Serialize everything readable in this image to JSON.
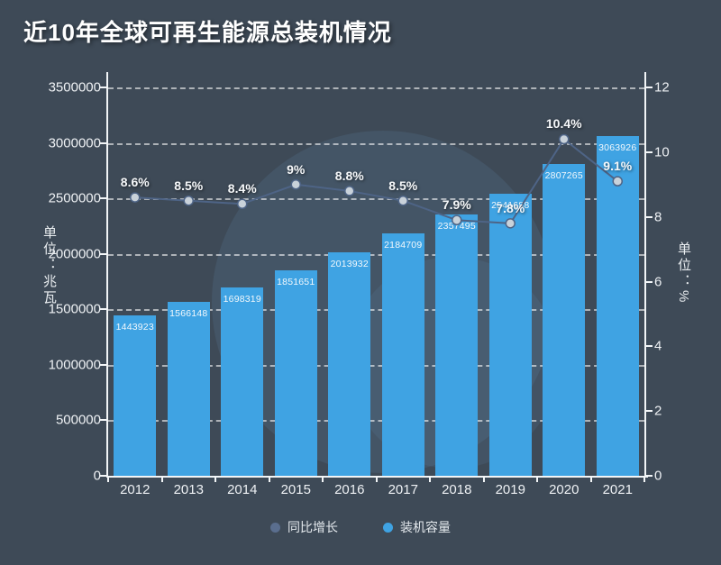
{
  "colors": {
    "background": "#3e4a57",
    "bar": "#3fa3e3",
    "line": "#4e6486",
    "marker": "#c9d2da",
    "axis": "#f2f5f7",
    "text": "#eef1f4"
  },
  "chart_data": {
    "type": "bar+line",
    "title": "近10年全球可再生能源总装机情况",
    "categories": [
      "2012",
      "2013",
      "2014",
      "2015",
      "2016",
      "2017",
      "2018",
      "2019",
      "2020",
      "2021"
    ],
    "series": [
      {
        "name": "同比增长",
        "type": "line",
        "axis": "right",
        "color": "#4e6486",
        "values": [
          8.6,
          8.5,
          8.4,
          9,
          8.8,
          8.5,
          7.9,
          7.8,
          10.4,
          9.1
        ],
        "labels": [
          "8.6%",
          "8.5%",
          "8.4%",
          "9%",
          "8.8%",
          "8.5%",
          "7.9%",
          "7.8%",
          "10.4%",
          "9.1%"
        ]
      },
      {
        "name": "装机容量",
        "type": "bar",
        "axis": "left",
        "color": "#3fa3e3",
        "values": [
          1443923,
          1566148,
          1698319,
          1851651,
          2013932,
          2184709,
          2357495,
          2541688,
          2807265,
          3063926
        ],
        "labels": [
          "1443923",
          "1566148",
          "1698319",
          "1851651",
          "2013932",
          "2184709",
          "2357495",
          "2541688",
          "2807265",
          "3063926"
        ]
      }
    ],
    "left_axis": {
      "title": "单位：兆瓦",
      "min": 0,
      "max": 3500000,
      "step": 500000,
      "ticks": [
        "0",
        "500000",
        "1000000",
        "1500000",
        "2000000",
        "2500000",
        "3000000",
        "3500000"
      ]
    },
    "right_axis": {
      "title": "单位：%",
      "min": 0,
      "max": 12,
      "step": 2,
      "ticks": [
        "0",
        "2",
        "4",
        "6",
        "8",
        "10",
        "12"
      ]
    },
    "grid": "horizontal dashed lines on",
    "legend_position": "bottom"
  }
}
